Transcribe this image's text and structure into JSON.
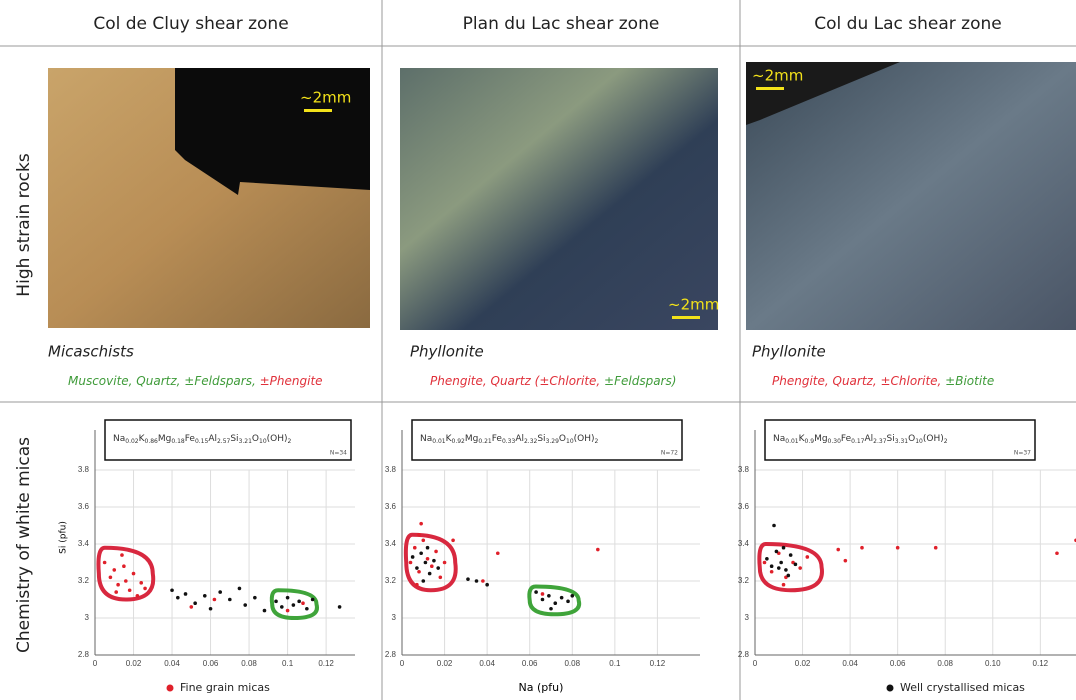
{
  "row_labels": [
    "High strain rocks",
    "Chemistry of white micas"
  ],
  "columns": [
    {
      "title": "Col de Cluy shear zone",
      "scale": "~2mm",
      "rock": "Micaschists",
      "minerals": [
        {
          "text": "Muscovite, Quartz, ±Feldspars, ",
          "color": "#3f9b3a"
        },
        {
          "text": "±Phengite",
          "color": "#e0303a"
        }
      ]
    },
    {
      "title": "Plan du Lac shear zone",
      "scale": "~2mm",
      "rock": "Phyllonite",
      "minerals": [
        {
          "text": "Phengite, Quartz (±Chlorite, ",
          "color": "#e0303a"
        },
        {
          "text": "±Feldspars)",
          "color": "#3f9b3a"
        }
      ]
    },
    {
      "title": "Col du Lac shear zone",
      "scale": "~2mm",
      "rock": "Phyllonite",
      "minerals": [
        {
          "text": "Phengite, Quartz, ±Chlorite, ",
          "color": "#e0303a"
        },
        {
          "text": "±Biotite",
          "color": "#3f9b3a"
        }
      ]
    }
  ],
  "legend": [
    {
      "name": "Fine grain micas",
      "color": "#e0202a"
    },
    {
      "name": "Well crystallised micas",
      "color": "#111111"
    }
  ],
  "chart_data": [
    {
      "type": "scatter",
      "ylabel": "Si (pfu)",
      "n": "N=34",
      "formula": [
        [
          "Na",
          "0.02"
        ],
        [
          "K",
          "0.86"
        ],
        [
          "Mg",
          "0.18"
        ],
        [
          "Fe",
          "0.15"
        ],
        [
          "Al",
          "2.57"
        ],
        [
          "Si",
          "3.21"
        ],
        [
          "O",
          "10"
        ],
        [
          "(OH)",
          "2"
        ]
      ],
      "xlim": [
        0,
        0.135
      ],
      "ylim": [
        2.8,
        3.8
      ],
      "xticks": [
        0,
        0.02,
        0.04,
        0.06,
        0.08,
        0.1,
        0.12
      ],
      "yticks": [
        2.8,
        3,
        3.2,
        3.4,
        3.6,
        3.8
      ],
      "grid": true,
      "series": [
        {
          "color": "#e0202a",
          "x": [
            0.005,
            0.008,
            0.01,
            0.012,
            0.014,
            0.016,
            0.018,
            0.02,
            0.022,
            0.024,
            0.015,
            0.011,
            0.026,
            0.05,
            0.062,
            0.1,
            0.108
          ],
          "y": [
            3.3,
            3.22,
            3.26,
            3.18,
            3.34,
            3.2,
            3.15,
            3.24,
            3.12,
            3.19,
            3.28,
            3.14,
            3.16,
            3.06,
            3.1,
            3.04,
            3.08
          ]
        },
        {
          "color": "#111111",
          "x": [
            0.04,
            0.043,
            0.047,
            0.052,
            0.057,
            0.06,
            0.065,
            0.07,
            0.075,
            0.078,
            0.083,
            0.088,
            0.094,
            0.097,
            0.1,
            0.103,
            0.106,
            0.11,
            0.113,
            0.127
          ],
          "y": [
            3.15,
            3.11,
            3.13,
            3.08,
            3.12,
            3.05,
            3.14,
            3.1,
            3.16,
            3.07,
            3.11,
            3.04,
            3.09,
            3.06,
            3.11,
            3.07,
            3.09,
            3.05,
            3.1,
            3.06
          ]
        }
      ]
    },
    {
      "type": "scatter",
      "xlabel": "Na (pfu)",
      "n": "N=72",
      "formula": [
        [
          "Na",
          "0.01"
        ],
        [
          "K",
          "0.92"
        ],
        [
          "Mg",
          "0.21"
        ],
        [
          "Fe",
          "0.33"
        ],
        [
          "Al",
          "2.32"
        ],
        [
          "Si",
          "3.29"
        ],
        [
          "O",
          "10"
        ],
        [
          "(OH)",
          "2"
        ]
      ],
      "xlim": [
        0,
        0.14
      ],
      "ylim": [
        2.8,
        3.8
      ],
      "xticks": [
        0,
        0.02,
        0.04,
        0.06,
        0.08,
        0.1,
        0.12
      ],
      "yticks": [
        2.8,
        3,
        3.2,
        3.4,
        3.6,
        3.8
      ],
      "grid": true,
      "series": [
        {
          "color": "#e0202a",
          "x": [
            0.004,
            0.006,
            0.008,
            0.01,
            0.012,
            0.014,
            0.016,
            0.018,
            0.02,
            0.009,
            0.007,
            0.024,
            0.008,
            0.038,
            0.045,
            0.092,
            0.066
          ],
          "y": [
            3.3,
            3.38,
            3.25,
            3.42,
            3.32,
            3.28,
            3.36,
            3.22,
            3.3,
            3.51,
            3.18,
            3.42,
            3.45,
            3.2,
            3.35,
            3.37,
            3.13
          ]
        },
        {
          "color": "#111111",
          "x": [
            0.005,
            0.007,
            0.009,
            0.011,
            0.013,
            0.015,
            0.017,
            0.012,
            0.01,
            0.031,
            0.035,
            0.04,
            0.063,
            0.066,
            0.069,
            0.072,
            0.075,
            0.078,
            0.08,
            0.07
          ],
          "y": [
            3.33,
            3.27,
            3.35,
            3.3,
            3.24,
            3.31,
            3.27,
            3.38,
            3.2,
            3.21,
            3.2,
            3.18,
            3.14,
            3.1,
            3.12,
            3.08,
            3.11,
            3.09,
            3.12,
            3.05
          ]
        }
      ]
    },
    {
      "type": "scatter",
      "n": "N=37",
      "formula": [
        [
          "Na",
          "0.01"
        ],
        [
          "K",
          "0.9"
        ],
        [
          "Mg",
          "0.30"
        ],
        [
          "Fe",
          "0.17"
        ],
        [
          "Al",
          "2.37"
        ],
        [
          "Si",
          "3.31"
        ],
        [
          "O",
          "10"
        ],
        [
          "(OH)",
          "2"
        ]
      ],
      "xlim": [
        0,
        0.135
      ],
      "ylim": [
        2.8,
        3.8
      ],
      "xticks": [
        0,
        0.02,
        0.04,
        0.06,
        0.08,
        {
          "value": 0.1,
          "label": "0.10"
        },
        0.12
      ],
      "yticks": [
        2.8,
        3,
        3.2,
        3.4,
        3.6,
        3.8
      ],
      "grid": true,
      "series": [
        {
          "color": "#e0202a",
          "x": [
            0.004,
            0.007,
            0.01,
            0.013,
            0.016,
            0.019,
            0.022,
            0.012,
            0.035,
            0.038,
            0.045,
            0.06,
            0.076,
            0.127,
            0.135
          ],
          "y": [
            3.3,
            3.25,
            3.35,
            3.22,
            3.3,
            3.27,
            3.33,
            3.18,
            3.37,
            3.31,
            3.38,
            3.38,
            3.38,
            3.35,
            3.42
          ]
        },
        {
          "color": "#111111",
          "x": [
            0.005,
            0.007,
            0.009,
            0.011,
            0.013,
            0.015,
            0.017,
            0.008,
            0.012,
            0.014,
            0.01
          ],
          "y": [
            3.32,
            3.28,
            3.36,
            3.3,
            3.26,
            3.34,
            3.29,
            3.5,
            3.38,
            3.23,
            3.27
          ]
        }
      ]
    }
  ]
}
